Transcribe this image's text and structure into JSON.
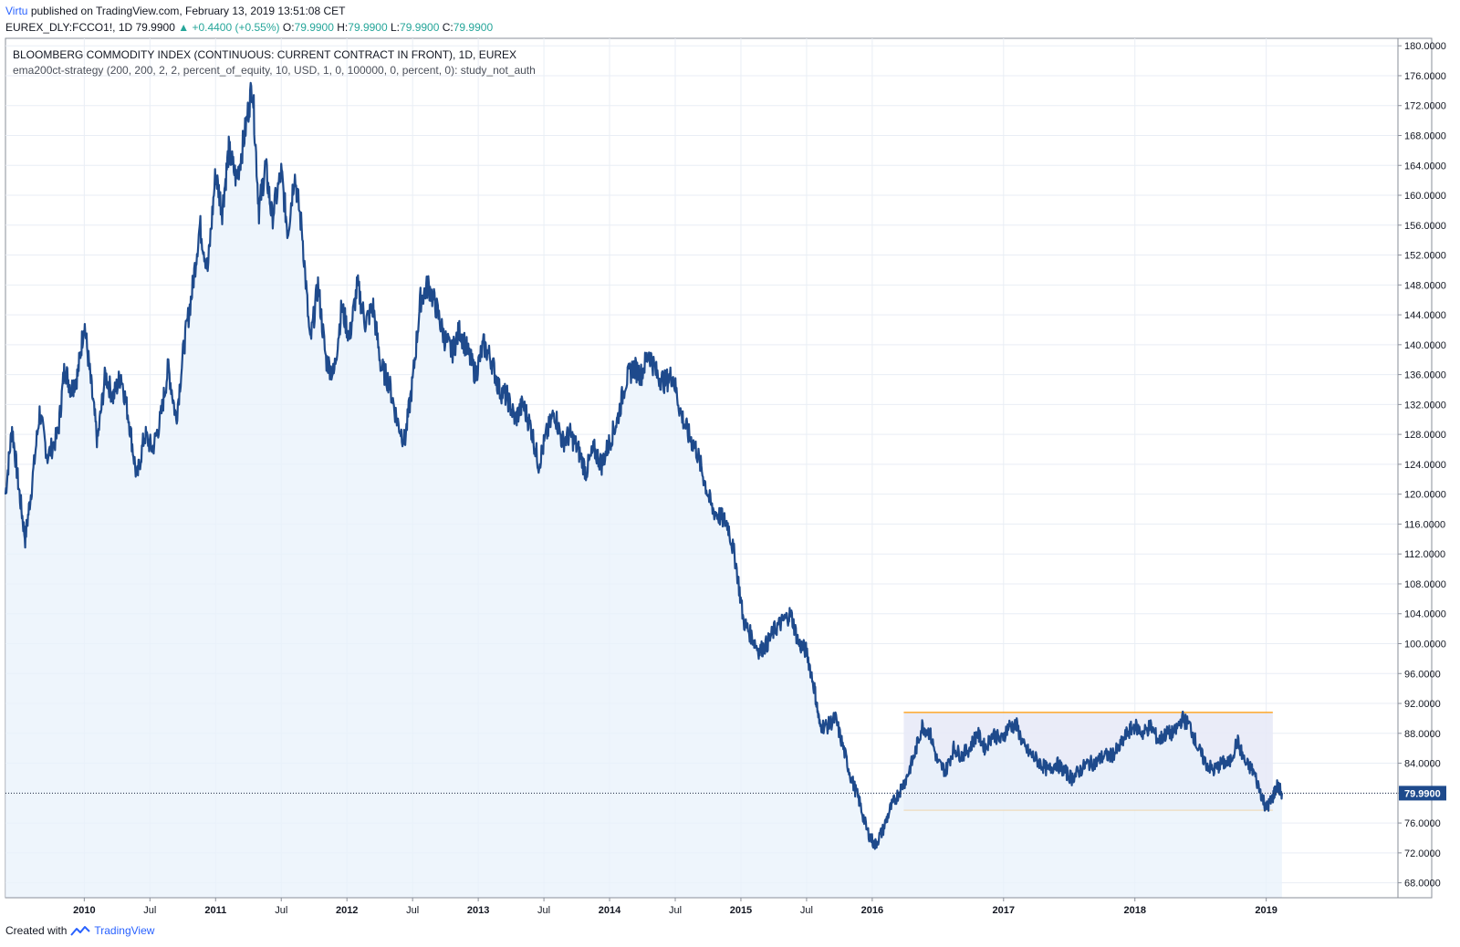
{
  "header": {
    "author": "Virtu",
    "published_text": "published on TradingView.com, February 13, 2019 13:51:08 CET",
    "symbol": "EUREX_DLY:FCCO1!, 1D",
    "last": "79.9900",
    "change": "▲ +0.4400 (+0.55%)",
    "o_label": "O:",
    "o": "79.9900",
    "h_label": "H:",
    "h": "79.9900",
    "l_label": "L:",
    "l": "79.9900",
    "c_label": "C:",
    "c": "79.9900"
  },
  "legend": {
    "title": "BLOOMBERG COMMODITY INDEX (CONTINUOUS: CURRENT CONTRACT IN FRONT), 1D, EUREX",
    "study": "ema200ct-strategy (200, 200, 2, 2, percent_of_equity, 10, USD, 1, 0, 100000, 0, percent, 0): study_not_auth"
  },
  "footer": {
    "created_with": "Created with",
    "brand": "TradingView"
  },
  "colors": {
    "line": "#1e4a8c",
    "fill": "#e8f1fb",
    "grid": "#e9eef5",
    "range": "#ff9800",
    "range_fill": "#e6e9f7",
    "price_tag": "#1e4a8c"
  },
  "chart_data": {
    "type": "area",
    "last_price": 79.99,
    "last_price_label": "79.9900",
    "ylim": [
      66,
      181
    ],
    "y_ticks": [
      "68.0000",
      "72.0000",
      "76.0000",
      "80.0000",
      "84.0000",
      "88.0000",
      "92.0000",
      "96.0000",
      "100.0000",
      "104.0000",
      "108.0000",
      "112.0000",
      "116.0000",
      "120.0000",
      "124.0000",
      "128.0000",
      "132.0000",
      "136.0000",
      "140.0000",
      "144.0000",
      "148.0000",
      "152.0000",
      "156.0000",
      "160.0000",
      "164.0000",
      "168.0000",
      "172.0000",
      "176.0000",
      "180.0000"
    ],
    "x_ticks": [
      {
        "label": "2010",
        "t": 2010.0
      },
      {
        "label": "Jul",
        "t": 2010.5
      },
      {
        "label": "2011",
        "t": 2011.0
      },
      {
        "label": "Jul",
        "t": 2011.5
      },
      {
        "label": "2012",
        "t": 2012.0
      },
      {
        "label": "Jul",
        "t": 2012.5
      },
      {
        "label": "2013",
        "t": 2013.0
      },
      {
        "label": "Jul",
        "t": 2013.5
      },
      {
        "label": "2014",
        "t": 2014.0
      },
      {
        "label": "Jul",
        "t": 2014.5
      },
      {
        "label": "2015",
        "t": 2015.0
      },
      {
        "label": "Jul",
        "t": 2015.5
      },
      {
        "label": "2016",
        "t": 2016.0
      },
      {
        "label": "2017",
        "t": 2017.0
      },
      {
        "label": "2018",
        "t": 2018.0
      },
      {
        "label": "2019",
        "t": 2019.0
      }
    ],
    "series": [
      {
        "points": [
          [
            2009.4,
            120
          ],
          [
            2009.45,
            129
          ],
          [
            2009.5,
            121
          ],
          [
            2009.55,
            114
          ],
          [
            2009.6,
            121
          ],
          [
            2009.66,
            131
          ],
          [
            2009.72,
            125
          ],
          [
            2009.8,
            128
          ],
          [
            2009.85,
            137
          ],
          [
            2009.9,
            134
          ],
          [
            2009.95,
            136
          ],
          [
            2010.0,
            143
          ],
          [
            2010.05,
            135
          ],
          [
            2010.1,
            127
          ],
          [
            2010.16,
            136
          ],
          [
            2010.22,
            133
          ],
          [
            2010.28,
            136
          ],
          [
            2010.34,
            130
          ],
          [
            2010.4,
            122
          ],
          [
            2010.46,
            128
          ],
          [
            2010.52,
            126
          ],
          [
            2010.58,
            130
          ],
          [
            2010.64,
            137
          ],
          [
            2010.7,
            130
          ],
          [
            2010.76,
            140
          ],
          [
            2010.82,
            147
          ],
          [
            2010.88,
            156
          ],
          [
            2010.94,
            150
          ],
          [
            2011.0,
            163
          ],
          [
            2011.05,
            158
          ],
          [
            2011.1,
            166
          ],
          [
            2011.16,
            162
          ],
          [
            2011.22,
            168
          ],
          [
            2011.28,
            175
          ],
          [
            2011.33,
            158
          ],
          [
            2011.38,
            164
          ],
          [
            2011.43,
            157
          ],
          [
            2011.5,
            163
          ],
          [
            2011.55,
            155
          ],
          [
            2011.6,
            163
          ],
          [
            2011.66,
            155
          ],
          [
            2011.72,
            140
          ],
          [
            2011.78,
            148
          ],
          [
            2011.84,
            138
          ],
          [
            2011.9,
            136
          ],
          [
            2011.96,
            145
          ],
          [
            2012.02,
            141
          ],
          [
            2012.08,
            148
          ],
          [
            2012.14,
            143
          ],
          [
            2012.2,
            145
          ],
          [
            2012.26,
            137
          ],
          [
            2012.32,
            135
          ],
          [
            2012.38,
            130
          ],
          [
            2012.44,
            127
          ],
          [
            2012.5,
            135
          ],
          [
            2012.56,
            146
          ],
          [
            2012.62,
            148
          ],
          [
            2012.68,
            145
          ],
          [
            2012.74,
            141
          ],
          [
            2012.8,
            139
          ],
          [
            2012.86,
            142
          ],
          [
            2012.92,
            139
          ],
          [
            2012.98,
            136
          ],
          [
            2013.04,
            140
          ],
          [
            2013.1,
            138
          ],
          [
            2013.16,
            134
          ],
          [
            2013.22,
            133
          ],
          [
            2013.28,
            130
          ],
          [
            2013.34,
            132
          ],
          [
            2013.4,
            129
          ],
          [
            2013.46,
            124
          ],
          [
            2013.52,
            128
          ],
          [
            2013.58,
            131
          ],
          [
            2013.64,
            127
          ],
          [
            2013.7,
            128
          ],
          [
            2013.76,
            126
          ],
          [
            2013.82,
            123
          ],
          [
            2013.88,
            126
          ],
          [
            2013.94,
            124
          ],
          [
            2014.0,
            127
          ],
          [
            2014.06,
            130
          ],
          [
            2014.12,
            135
          ],
          [
            2014.18,
            137
          ],
          [
            2014.24,
            136
          ],
          [
            2014.3,
            139
          ],
          [
            2014.36,
            136
          ],
          [
            2014.42,
            135
          ],
          [
            2014.48,
            136
          ],
          [
            2014.54,
            131
          ],
          [
            2014.6,
            128
          ],
          [
            2014.66,
            126
          ],
          [
            2014.72,
            122
          ],
          [
            2014.78,
            118
          ],
          [
            2014.84,
            117
          ],
          [
            2014.9,
            116
          ],
          [
            2014.96,
            111
          ],
          [
            2015.02,
            103
          ],
          [
            2015.08,
            101
          ],
          [
            2015.14,
            99
          ],
          [
            2015.2,
            100
          ],
          [
            2015.26,
            102
          ],
          [
            2015.32,
            103
          ],
          [
            2015.38,
            104
          ],
          [
            2015.44,
            100
          ],
          [
            2015.5,
            99
          ],
          [
            2015.56,
            94
          ],
          [
            2015.6,
            89
          ],
          [
            2015.66,
            89
          ],
          [
            2015.72,
            90
          ],
          [
            2015.78,
            86
          ],
          [
            2015.84,
            82
          ],
          [
            2015.9,
            79
          ],
          [
            2015.96,
            75
          ],
          [
            2016.02,
            73
          ],
          [
            2016.08,
            75
          ],
          [
            2016.14,
            78
          ],
          [
            2016.2,
            80
          ],
          [
            2016.26,
            82
          ],
          [
            2016.32,
            85
          ],
          [
            2016.38,
            89
          ],
          [
            2016.44,
            88
          ],
          [
            2016.5,
            84
          ],
          [
            2016.56,
            83
          ],
          [
            2016.62,
            86
          ],
          [
            2016.68,
            85
          ],
          [
            2016.74,
            86
          ],
          [
            2016.8,
            88
          ],
          [
            2016.86,
            86
          ],
          [
            2016.92,
            88
          ],
          [
            2016.98,
            87
          ],
          [
            2017.04,
            89
          ],
          [
            2017.1,
            89
          ],
          [
            2017.16,
            86
          ],
          [
            2017.22,
            85
          ],
          [
            2017.28,
            84
          ],
          [
            2017.34,
            83
          ],
          [
            2017.4,
            84
          ],
          [
            2017.46,
            83
          ],
          [
            2017.52,
            82
          ],
          [
            2017.58,
            83
          ],
          [
            2017.64,
            84
          ],
          [
            2017.7,
            84
          ],
          [
            2017.76,
            85
          ],
          [
            2017.82,
            85
          ],
          [
            2017.88,
            86
          ],
          [
            2017.94,
            88
          ],
          [
            2018.0,
            89
          ],
          [
            2018.06,
            88
          ],
          [
            2018.12,
            89
          ],
          [
            2018.18,
            87
          ],
          [
            2018.24,
            88
          ],
          [
            2018.3,
            88
          ],
          [
            2018.36,
            90
          ],
          [
            2018.42,
            89
          ],
          [
            2018.48,
            86
          ],
          [
            2018.54,
            84
          ],
          [
            2018.6,
            83
          ],
          [
            2018.66,
            84
          ],
          [
            2018.72,
            84
          ],
          [
            2018.78,
            87
          ],
          [
            2018.84,
            84
          ],
          [
            2018.9,
            83
          ],
          [
            2018.96,
            80
          ],
          [
            2019.0,
            78
          ],
          [
            2019.04,
            79
          ],
          [
            2019.08,
            81
          ],
          [
            2019.12,
            80
          ]
        ]
      }
    ],
    "range_box": {
      "x_start": 2016.24,
      "x_end": 2019.05,
      "top": 90.8,
      "bottom": 77.7
    }
  }
}
